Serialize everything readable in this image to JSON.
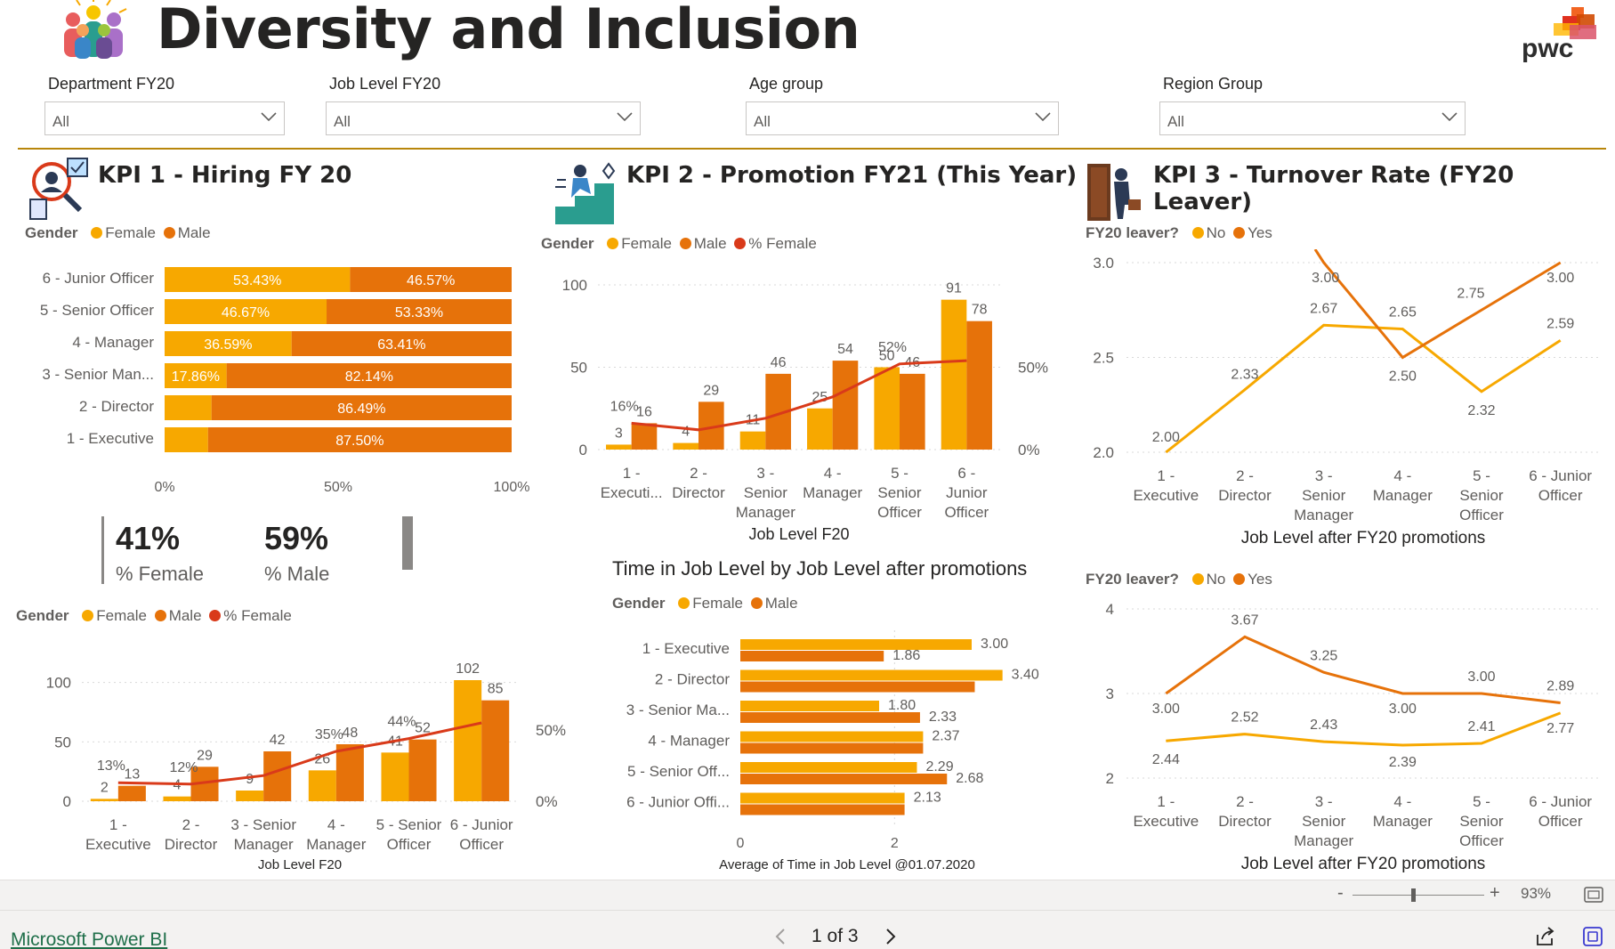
{
  "header": {
    "title": "Diversity and Inclusion",
    "logo_icon": "people-group-icon",
    "brand_logo": "pwc"
  },
  "filters": [
    {
      "label": "Department FY20",
      "value": "All"
    },
    {
      "label": "Job Level FY20",
      "value": "All"
    },
    {
      "label": "Age group",
      "value": "All"
    },
    {
      "label": "Region Group",
      "value": "All"
    }
  ],
  "colors": {
    "female": "#f7a800",
    "male": "#e6720a",
    "pct_female": "#d93a1a",
    "rule": "#b8860b"
  },
  "kpi1": {
    "title": "KPI 1 - Hiring FY 20",
    "legend_title": "Gender",
    "legend": [
      "Female",
      "Male"
    ],
    "cards": {
      "female_value": "41%",
      "female_label": "% Female",
      "male_value": "59%",
      "male_label": "% Male"
    },
    "bottom_legend": [
      "Female",
      "Male",
      "% Female"
    ]
  },
  "kpi2": {
    "title": "KPI 2 - Promotion FY21 (This Year)",
    "legend_title": "Gender",
    "legend": [
      "Female",
      "Male",
      "% Female"
    ],
    "time_title": "Time in Job Level by Job Level after promotions",
    "time_legend": [
      "Female",
      "Male"
    ]
  },
  "kpi3": {
    "title": "KPI 3 - Turnover Rate (FY20 Leaver)",
    "legend_title": "FY20 leaver?",
    "legend": [
      "No",
      "Yes"
    ]
  },
  "chart_data": [
    {
      "id": "hiring_stacked",
      "type": "bar",
      "orientation": "horizontal-100%-stacked",
      "categories": [
        "6 - Junior Officer",
        "5 - Senior Officer",
        "4 - Manager",
        "3 - Senior Man...",
        "2 - Director",
        "1 - Executive"
      ],
      "series": [
        {
          "name": "Female",
          "values": [
            53.43,
            46.67,
            36.59,
            17.86,
            13.51,
            12.5
          ],
          "labels": [
            "53.43%",
            "46.67%",
            "36.59%",
            "17.86%",
            "",
            ""
          ]
        },
        {
          "name": "Male",
          "values": [
            46.57,
            53.33,
            63.41,
            82.14,
            86.49,
            87.5
          ],
          "labels": [
            "46.57%",
            "53.33%",
            "63.41%",
            "82.14%",
            "86.49%",
            "87.50%"
          ]
        }
      ],
      "xticks": [
        "0%",
        "50%",
        "100%"
      ]
    },
    {
      "id": "hiring_combo",
      "type": "bar",
      "categories": [
        "1 - Executive",
        "2 - Director",
        "3 - Senior Manager",
        "4 - Manager",
        "5 - Senior Officer",
        "6 - Junior Officer"
      ],
      "series": [
        {
          "name": "Female",
          "values": [
            2,
            4,
            9,
            26,
            41,
            102
          ]
        },
        {
          "name": "Male",
          "values": [
            13,
            29,
            42,
            48,
            52,
            85
          ]
        },
        {
          "name": "% Female",
          "values": [
            13,
            12,
            18,
            35,
            44,
            55
          ],
          "labels": [
            "13%",
            "12%",
            "",
            "35%",
            "44%",
            ""
          ]
        }
      ],
      "xlabel": "Job Level F20",
      "ylim": [
        0,
        120
      ],
      "yticks": [
        "0",
        "50",
        "100"
      ],
      "y2ticks": [
        "0%",
        "50%"
      ]
    },
    {
      "id": "promotion_combo",
      "type": "bar",
      "categories": [
        "1 - Executi...",
        "2 - Director",
        "3 - Senior Manager",
        "4 - Manager",
        "5 - Senior Officer",
        "6 - Junior Officer"
      ],
      "series": [
        {
          "name": "Female",
          "values": [
            3,
            4,
            11,
            25,
            50,
            91
          ]
        },
        {
          "name": "Male",
          "values": [
            16,
            29,
            46,
            54,
            46,
            78
          ]
        },
        {
          "name": "% Female",
          "values": [
            16,
            12,
            19,
            32,
            52,
            54
          ],
          "labels": [
            "16%",
            "",
            "",
            "",
            "52%",
            ""
          ]
        }
      ],
      "xlabel": "Job Level F20",
      "ylim": [
        0,
        100
      ],
      "yticks": [
        "0",
        "50",
        "100"
      ],
      "y2ticks": [
        "0%",
        "50%"
      ]
    },
    {
      "id": "time_in_level",
      "type": "bar",
      "orientation": "horizontal-clustered",
      "categories": [
        "1 - Executive",
        "2 - Director",
        "3 - Senior Ma...",
        "4 - Manager",
        "5 - Senior Off...",
        "6 - Junior Offi..."
      ],
      "series": [
        {
          "name": "Female",
          "values": [
            3.0,
            3.4,
            1.8,
            2.37,
            2.29,
            2.13
          ],
          "labels": [
            "3.00",
            "3.40",
            "1.80",
            "2.37",
            "2.29",
            "2.13"
          ]
        },
        {
          "name": "Male",
          "values": [
            1.86,
            3.04,
            2.33,
            2.37,
            2.68,
            2.13
          ],
          "labels": [
            "1.86",
            "",
            "2.33",
            "",
            "2.68",
            ""
          ]
        }
      ],
      "xlabel": "Average of Time in Job Level @01.07.2020",
      "xlim": [
        0,
        3.6
      ],
      "xticks": [
        "0",
        "2"
      ]
    },
    {
      "id": "turnover_line_1",
      "type": "line",
      "categories": [
        "1 - Executive",
        "2 - Director",
        "3 - Senior Manager",
        "4 - Manager",
        "5 - Senior Officer",
        "6 - Junior Officer"
      ],
      "series": [
        {
          "name": "No",
          "values": [
            2.0,
            2.33,
            2.67,
            2.65,
            2.32,
            2.59
          ],
          "labels": [
            "2.00",
            "2.33",
            "2.67",
            "2.65",
            "2.32",
            "2.59"
          ]
        },
        {
          "name": "Yes",
          "values": [
            null,
            null,
            3.0,
            2.5,
            2.75,
            3.0
          ],
          "labels": [
            "",
            "",
            "3.00",
            "2.50",
            "2.75",
            "3.00"
          ]
        }
      ],
      "xlabel": "Job Level after FY20 promotions",
      "ylim": [
        2.0,
        3.0
      ],
      "yticks": [
        "2.0",
        "2.5",
        "3.0"
      ]
    },
    {
      "id": "turnover_line_2",
      "type": "line",
      "categories": [
        "1 - Executive",
        "2 - Director",
        "3 - Senior Manager",
        "4 - Manager",
        "5 - Senior Officer",
        "6 - Junior Officer"
      ],
      "series": [
        {
          "name": "No",
          "values": [
            2.44,
            2.52,
            2.43,
            2.39,
            2.41,
            2.77
          ],
          "labels": [
            "2.44",
            "2.52",
            "2.43",
            "2.39",
            "2.41",
            "2.77"
          ]
        },
        {
          "name": "Yes",
          "values": [
            3.0,
            3.67,
            3.25,
            3.0,
            3.0,
            2.89
          ],
          "labels": [
            "3.00",
            "3.67",
            "3.25",
            "3.00",
            "3.00",
            "2.89"
          ]
        }
      ],
      "xlabel": "Job Level after FY20 promotions",
      "ylim": [
        2,
        4
      ],
      "yticks": [
        "2",
        "3",
        "4"
      ]
    }
  ],
  "footer": {
    "zoom_minus": "-",
    "zoom_plus": "+",
    "zoom": "93%",
    "link": "Microsoft Power BI",
    "page": "1 of 3"
  }
}
